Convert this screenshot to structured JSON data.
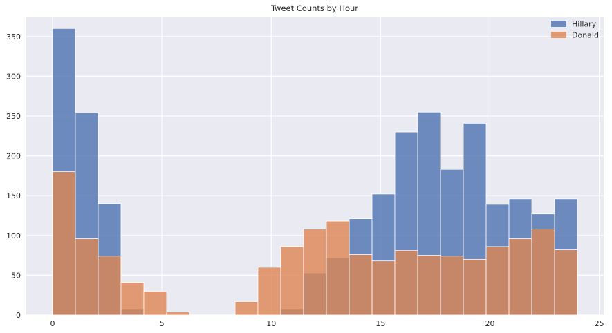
{
  "chart_data": {
    "type": "bar",
    "title": "Tweet Counts by Hour",
    "xlabel": "",
    "ylabel": "",
    "xlim": [
      -1.2,
      25.2
    ],
    "ylim": [
      0,
      375
    ],
    "xticks": [
      0,
      5,
      10,
      15,
      20,
      25
    ],
    "yticks": [
      0,
      50,
      100,
      150,
      200,
      250,
      300,
      350
    ],
    "grid": true,
    "legend_position": "top-right",
    "bin_edges": [
      0,
      1.043,
      2.087,
      3.13,
      4.174,
      5.217,
      6.261,
      7.304,
      8.348,
      9.391,
      10.435,
      11.478,
      12.522,
      13.565,
      14.609,
      15.652,
      16.696,
      17.739,
      18.783,
      19.826,
      20.87,
      21.913,
      22.957,
      24.0
    ],
    "series": [
      {
        "name": "Hillary",
        "color": "#4c72b0",
        "values": [
          360,
          254,
          140,
          8,
          0,
          0,
          0,
          0,
          0,
          0,
          8,
          53,
          72,
          121,
          152,
          230,
          255,
          183,
          241,
          139,
          146,
          127,
          146
        ]
      },
      {
        "name": "Donald",
        "color": "#dd8452",
        "values": [
          180,
          96,
          74,
          41,
          30,
          4,
          0,
          0,
          17,
          60,
          86,
          108,
          118,
          76,
          68,
          81,
          75,
          74,
          70,
          86,
          96,
          108,
          82
        ]
      }
    ]
  }
}
